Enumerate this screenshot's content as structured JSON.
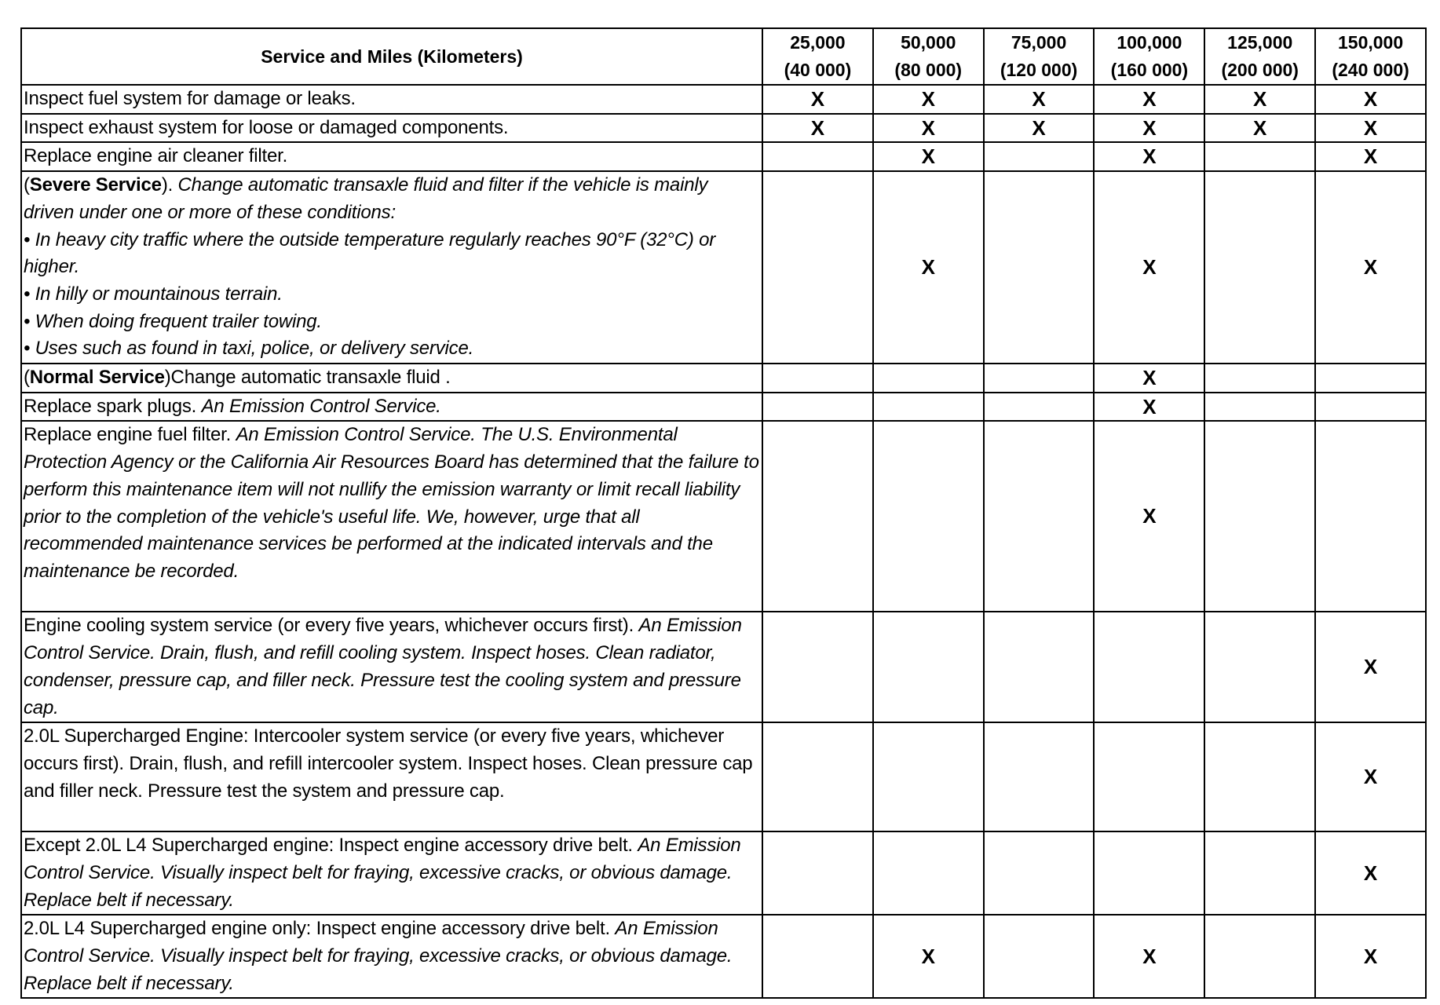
{
  "header": {
    "service_label": "Service and Miles (Kilometers)",
    "intervals": [
      {
        "miles": "25,000",
        "km": "(40 000)"
      },
      {
        "miles": "50,000",
        "km": "(80 000)"
      },
      {
        "miles": "75,000",
        "km": "(120 000)"
      },
      {
        "miles": "100,000",
        "km": "(160 000)"
      },
      {
        "miles": "125,000",
        "km": "(200 000)"
      },
      {
        "miles": "150,000",
        "km": "(240 000)"
      }
    ]
  },
  "mark_symbol": "X",
  "rows": [
    {
      "segments": [
        {
          "t": "Inspect fuel system for damage or leaks.",
          "s": "n"
        }
      ],
      "marks": [
        true,
        true,
        true,
        true,
        true,
        true
      ]
    },
    {
      "segments": [
        {
          "t": "Inspect exhaust system for loose or damaged components.",
          "s": "n"
        }
      ],
      "marks": [
        true,
        true,
        true,
        true,
        true,
        true
      ]
    },
    {
      "segments": [
        {
          "t": "Replace engine air cleaner filter.",
          "s": "n"
        }
      ],
      "marks": [
        false,
        true,
        false,
        true,
        false,
        true
      ]
    },
    {
      "segments": [
        {
          "t": "(",
          "s": "n"
        },
        {
          "t": "Severe Service",
          "s": "b"
        },
        {
          "t": "). ",
          "s": "n"
        },
        {
          "t": "Change automatic transaxle fluid and filter if the vehicle is mainly driven under one or more of these conditions:",
          "s": "i"
        },
        {
          "t": "•  In heavy city traffic where the outside temperature regularly reaches 90°F (32°C) or higher.",
          "s": "i",
          "br": true
        },
        {
          "t": "•  In hilly or mountainous terrain.",
          "s": "i",
          "br": true
        },
        {
          "t": "•  When doing frequent trailer towing.",
          "s": "i",
          "br": true
        },
        {
          "t": "•  Uses such as found in taxi, police, or delivery service.",
          "s": "i",
          "br": true
        }
      ],
      "marks": [
        false,
        true,
        false,
        true,
        false,
        true
      ]
    },
    {
      "segments": [
        {
          "t": "(",
          "s": "n"
        },
        {
          "t": "Normal Service",
          "s": "b"
        },
        {
          "t": ")Change automatic transaxle fluid .",
          "s": "n"
        }
      ],
      "marks": [
        false,
        false,
        false,
        true,
        false,
        false
      ]
    },
    {
      "segments": [
        {
          "t": "Replace spark plugs. ",
          "s": "n"
        },
        {
          "t": "An Emission Control Service.",
          "s": "i"
        }
      ],
      "marks": [
        false,
        false,
        false,
        true,
        false,
        false
      ]
    },
    {
      "segments": [
        {
          "t": "Replace engine fuel filter. ",
          "s": "n"
        },
        {
          "t": "An Emission Control Service. The U.S. Environmental Protection Agency or the California Air Resources Board has determined that the failure to perform this maintenance item will not nullify the emission warranty or limit recall liability prior to the completion of the vehicle's useful life. We, however, urge that all recommended maintenance services be performed at the indicated intervals and the maintenance be recorded.",
          "s": "i"
        }
      ],
      "marks": [
        false,
        false,
        false,
        true,
        false,
        false
      ]
    },
    {
      "segments": [
        {
          "t": "Engine cooling system service (or every five years, whichever occurs first). ",
          "s": "n"
        },
        {
          "t": "An Emission Control Service. Drain, flush, and refill cooling system. Inspect hoses. Clean radiator, condenser, pressure cap, and filler neck. Pressure test the cooling system and pressure cap.",
          "s": "i"
        }
      ],
      "marks": [
        false,
        false,
        false,
        false,
        false,
        true
      ]
    },
    {
      "segments": [
        {
          "t": "2.0L Supercharged Engine: Intercooler system service (or every five years, whichever occurs first). Drain, flush, and refill intercooler system. Inspect hoses. Clean pressure cap and filler neck. Pressure test the system and pressure cap.",
          "s": "n"
        }
      ],
      "marks": [
        false,
        false,
        false,
        false,
        false,
        true
      ]
    },
    {
      "segments": [
        {
          "t": "Except 2.0L L4 Supercharged engine: Inspect engine accessory drive belt. ",
          "s": "n"
        },
        {
          "t": "An Emission Control Service. Visually inspect belt for fraying, excessive cracks, or obvious damage. Replace belt if necessary.",
          "s": "i"
        }
      ],
      "marks": [
        false,
        false,
        false,
        false,
        false,
        true
      ]
    },
    {
      "segments": [
        {
          "t": "2.0L L4 Supercharged engine only: Inspect engine accessory drive belt. ",
          "s": "n"
        },
        {
          "t": "An Emission Control Service. Visually inspect belt for fraying, excessive cracks, or obvious damage. Replace belt if necessary.",
          "s": "i"
        }
      ],
      "marks": [
        false,
        true,
        false,
        true,
        false,
        true
      ]
    }
  ]
}
